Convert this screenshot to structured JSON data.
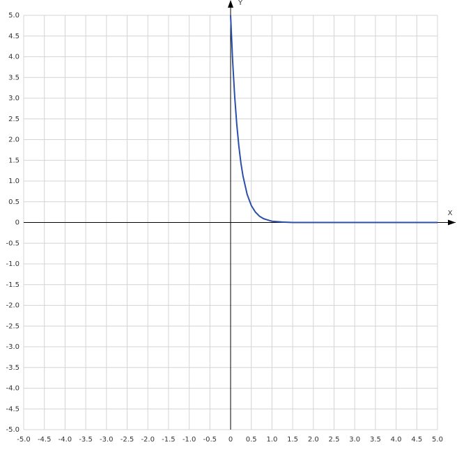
{
  "chart_data": {
    "type": "line",
    "x_label": "X",
    "y_label": "Y",
    "x": [
      0,
      0.05,
      0.1,
      0.15,
      0.2,
      0.25,
      0.3,
      0.4,
      0.5,
      0.6,
      0.7,
      0.8,
      0.9,
      1.0,
      1.25,
      1.5,
      2,
      3,
      4,
      5
    ],
    "series": [
      {
        "color": "#2b4fa8",
        "values": [
          5,
          3.89,
          3.03,
          2.36,
          1.84,
          1.43,
          1.12,
          0.68,
          0.41,
          0.25,
          0.15,
          0.09,
          0.06,
          0.03,
          0.01,
          0,
          0,
          0,
          0,
          0
        ]
      }
    ],
    "xlim": [
      -5,
      5
    ],
    "ylim": [
      -5,
      5
    ],
    "xticks": [
      {
        "value": -5,
        "label": "-5.0"
      },
      -4.5,
      {
        "value": -4,
        "label": "-4.0"
      },
      -3.5,
      {
        "value": -3,
        "label": "-3.0"
      },
      -2.5,
      {
        "value": -2,
        "label": "-2.0"
      },
      -1.5,
      {
        "value": -1,
        "label": "-1.0"
      },
      -0.5,
      0,
      0.5,
      {
        "value": 1,
        "label": "1.0"
      },
      1.5,
      {
        "value": 2,
        "label": "2.0"
      },
      2.5,
      {
        "value": 3,
        "label": "3.0"
      },
      3.5,
      {
        "value": 4,
        "label": "4.0"
      },
      4.5,
      {
        "value": 5,
        "label": "5.0"
      }
    ],
    "yticks": [
      {
        "value": -5,
        "label": "-5.0"
      },
      -4.5,
      {
        "value": -4,
        "label": "-4.0"
      },
      -3.5,
      {
        "value": -3,
        "label": "-3.0"
      },
      -2.5,
      {
        "value": -2,
        "label": "-2.0"
      },
      -1.5,
      {
        "value": -1,
        "label": "-1.0"
      },
      -0.5,
      0,
      0.5,
      {
        "value": 1,
        "label": "1.0"
      },
      1.5,
      {
        "value": 2,
        "label": "2.0"
      },
      2.5,
      {
        "value": 3,
        "label": "3.0"
      },
      3.5,
      {
        "value": 4,
        "label": "4.0"
      },
      4.5,
      {
        "value": 5,
        "label": "5.0"
      }
    ],
    "grid": true
  }
}
